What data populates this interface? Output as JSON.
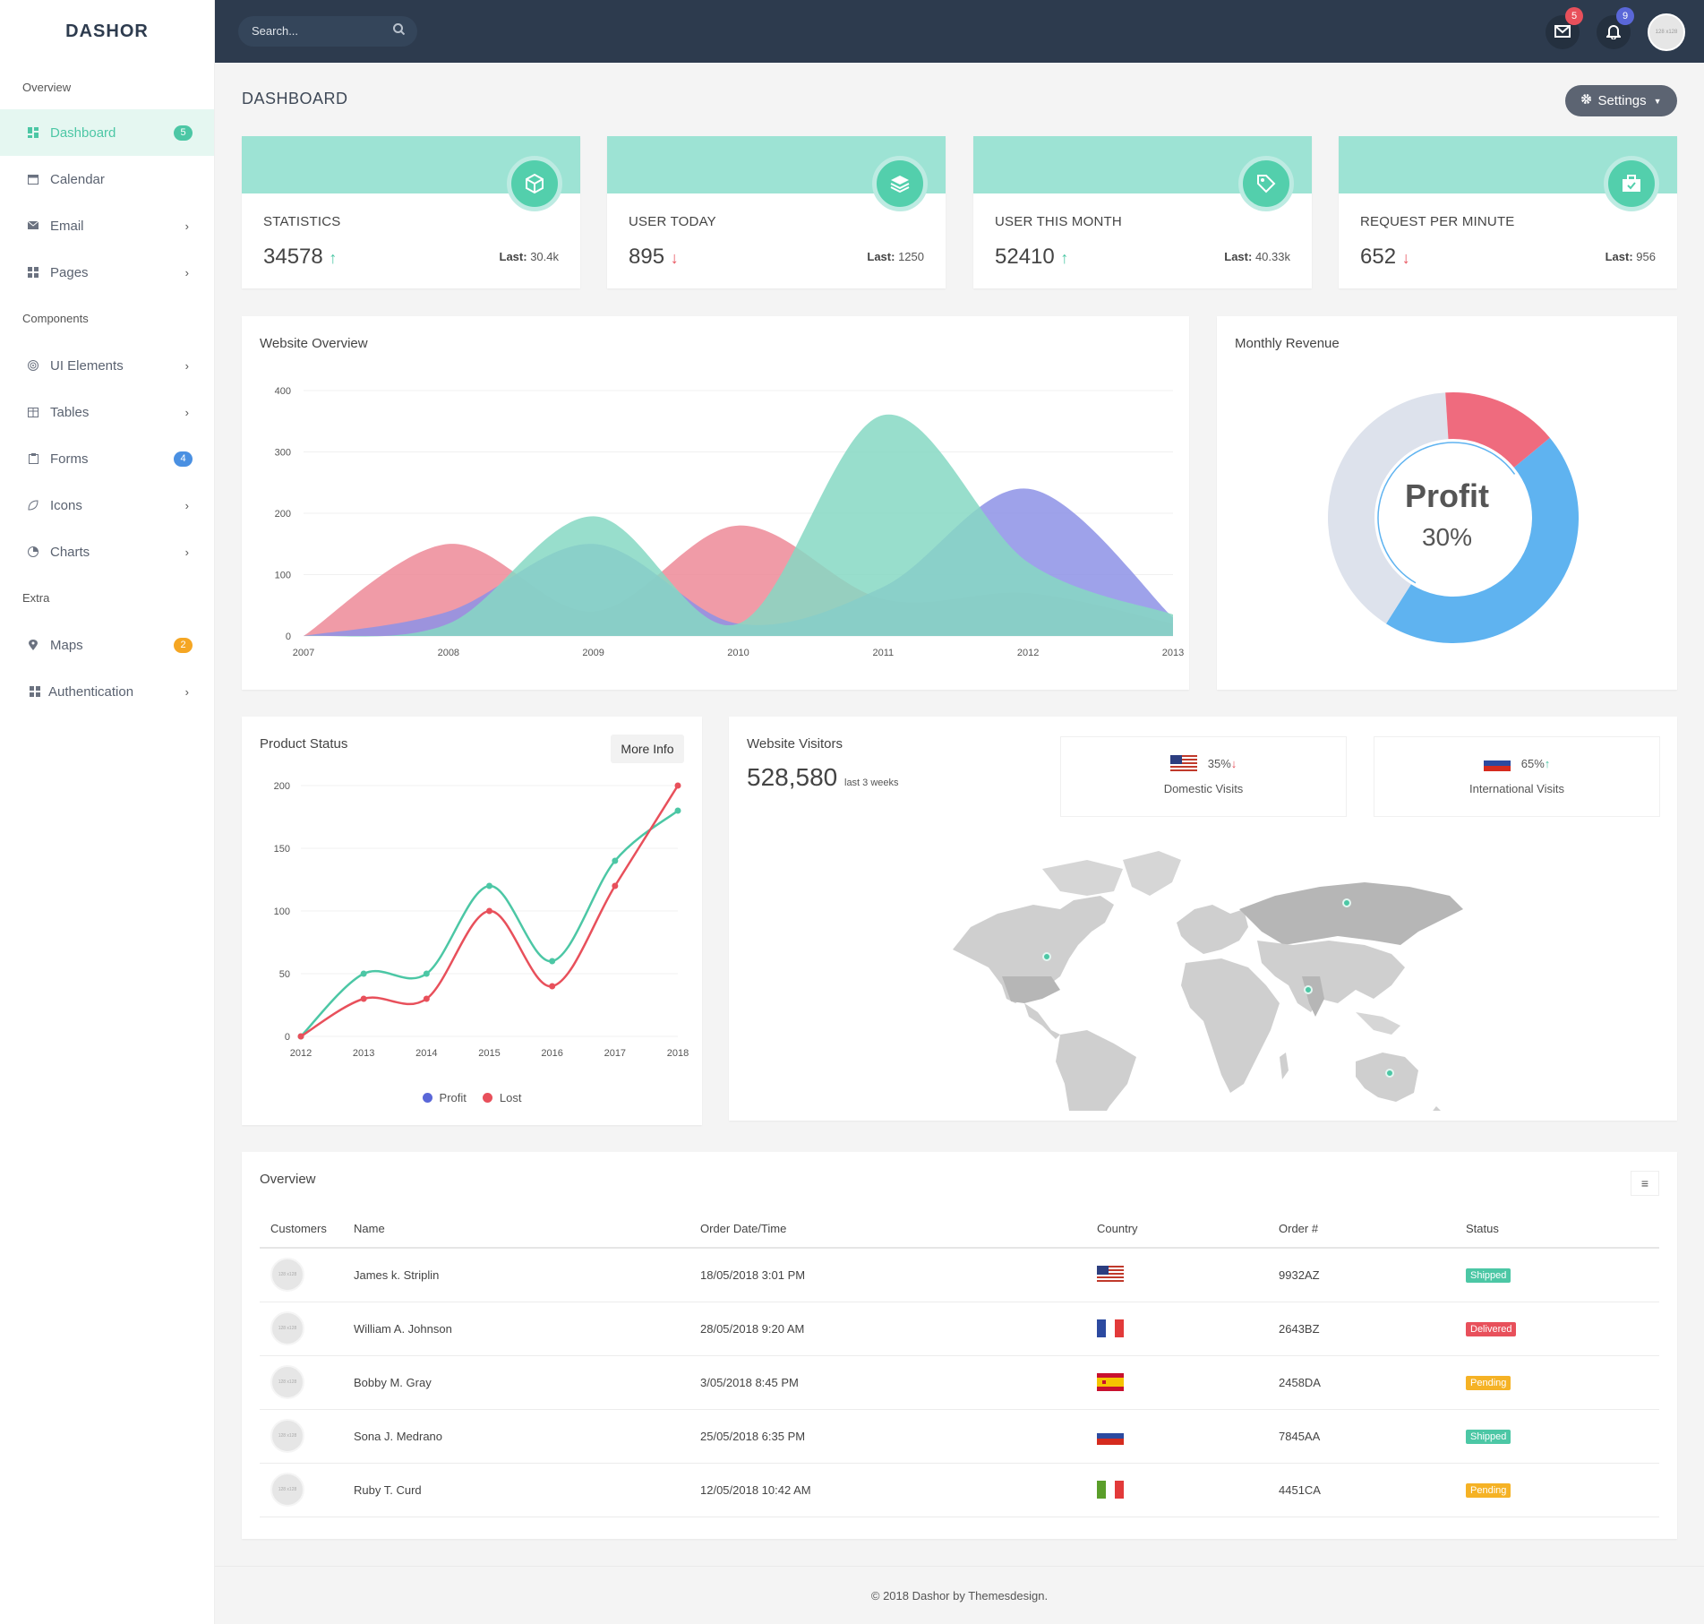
{
  "brand": "DASHOR",
  "sidebar": {
    "sections": [
      "Overview",
      "Components",
      "Extra"
    ],
    "items": [
      {
        "label": "Dashboard",
        "icon": "dashboard-icon",
        "badge": "5",
        "badge_color": "#4cc7a5",
        "active": true
      },
      {
        "label": "Calendar",
        "icon": "calendar-icon"
      },
      {
        "label": "Email",
        "icon": "envelope-icon",
        "chevron": true
      },
      {
        "label": "Pages",
        "icon": "pages-icon",
        "chevron": true
      },
      {
        "label": "UI Elements",
        "icon": "target-icon",
        "chevron": true
      },
      {
        "label": "Tables",
        "icon": "table-icon",
        "chevron": true
      },
      {
        "label": "Forms",
        "icon": "clipboard-icon",
        "badge": "4",
        "badge_color": "#4a90e2"
      },
      {
        "label": "Icons",
        "icon": "leaf-icon",
        "chevron": true
      },
      {
        "label": "Charts",
        "icon": "pie-chart-icon",
        "chevron": true
      },
      {
        "label": "Maps",
        "icon": "map-marker-icon",
        "badge": "2",
        "badge_color": "#f5a623"
      },
      {
        "label": "Authentication",
        "icon": "lock-icon",
        "chevron": true
      }
    ]
  },
  "topbar": {
    "search_placeholder": "Search...",
    "mail_badge": "5",
    "notif_badge": "9",
    "avatar_text": "128 x128"
  },
  "page_title": "DASHBOARD",
  "settings_label": "Settings",
  "stats": [
    {
      "label": "STATISTICS",
      "value": "34578",
      "trend": "up",
      "last_label": "Last:",
      "last_value": "30.4k",
      "icon": "cube-icon"
    },
    {
      "label": "USER TODAY",
      "value": "895",
      "trend": "down",
      "last_label": "Last:",
      "last_value": "1250",
      "icon": "layers-icon"
    },
    {
      "label": "USER THIS MONTH",
      "value": "52410",
      "trend": "up",
      "last_label": "Last:",
      "last_value": "40.33k",
      "icon": "tag-icon"
    },
    {
      "label": "REQUEST PER MINUTE",
      "value": "652",
      "trend": "down",
      "last_label": "Last:",
      "last_value": "956",
      "icon": "briefcase-icon"
    }
  ],
  "website_overview": {
    "title": "Website Overview"
  },
  "monthly_revenue": {
    "title": "Monthly Revenue",
    "center_label": "Profit",
    "center_value": "30%"
  },
  "product_status": {
    "title": "Product Status",
    "more_label": "More Info",
    "legend": [
      "Profit",
      "Lost"
    ]
  },
  "website_visitors": {
    "title": "Website Visitors",
    "total": "528,580",
    "period": "last 3 weeks",
    "domestic": {
      "pct": "35%",
      "label": "Domestic Visits",
      "trend": "down"
    },
    "international": {
      "pct": "65%",
      "label": "International Visits",
      "trend": "up"
    }
  },
  "overview_table": {
    "title": "Overview",
    "columns": [
      "Customers",
      "Name",
      "Order Date/Time",
      "Country",
      "Order #",
      "Status"
    ],
    "rows": [
      {
        "avatar": "128 x128",
        "name": "James k. Striplin",
        "date": "18/05/2018 3:01 PM",
        "country": "us",
        "order": "9932AZ",
        "status": "Shipped",
        "status_color": "#4cc7a5"
      },
      {
        "avatar": "128 x128",
        "name": "William A. Johnson",
        "date": "28/05/2018 9:20 AM",
        "country": "fr",
        "order": "2643BZ",
        "status": "Delivered",
        "status_color": "#e8505b"
      },
      {
        "avatar": "128 x128",
        "name": "Bobby M. Gray",
        "date": "3/05/2018 8:45 PM",
        "country": "es",
        "order": "2458DA",
        "status": "Pending",
        "status_color": "#f5b225"
      },
      {
        "avatar": "128 x128",
        "name": "Sona J. Medrano",
        "date": "25/05/2018 6:35 PM",
        "country": "ru",
        "order": "7845AA",
        "status": "Shipped",
        "status_color": "#4cc7a5"
      },
      {
        "avatar": "128 x128",
        "name": "Ruby T. Curd",
        "date": "12/05/2018 10:42 AM",
        "country": "it",
        "order": "4451CA",
        "status": "Pending",
        "status_color": "#f5b225"
      }
    ]
  },
  "footer": "© 2018 Dashor by Themesdesign.",
  "colors": {
    "accent": "#4cc7a5",
    "topbar": "#2d3b4e",
    "pink": "#ed8a98",
    "purple": "#8d92e6",
    "blue": "#5fb3f0",
    "red": "#ef6b7e",
    "grey": "#dde2ec"
  },
  "chart_data": [
    {
      "type": "area",
      "title": "Website Overview",
      "x": [
        "2007",
        "2008",
        "2009",
        "2010",
        "2011",
        "2012",
        "2013"
      ],
      "ylim": [
        0,
        400
      ],
      "yticks": [
        0,
        100,
        200,
        300,
        400
      ],
      "series": [
        {
          "color": "#ed8a98",
          "values": [
            0,
            150,
            40,
            180,
            60,
            70,
            20
          ]
        },
        {
          "color": "#8d92e6",
          "values": [
            0,
            40,
            150,
            20,
            80,
            240,
            30
          ]
        },
        {
          "color": "#86d8c3",
          "values": [
            0,
            20,
            195,
            20,
            360,
            120,
            35
          ]
        }
      ]
    },
    {
      "type": "pie",
      "title": "Monthly Revenue",
      "slices": [
        {
          "color": "#5fb3f0",
          "value": 45
        },
        {
          "color": "#dde2ec",
          "value": 40
        },
        {
          "color": "#ef6b7e",
          "value": 15
        }
      ]
    },
    {
      "type": "line",
      "title": "Product Status",
      "x": [
        "2012",
        "2013",
        "2014",
        "2015",
        "2016",
        "2017",
        "2018"
      ],
      "ylim": [
        0,
        200
      ],
      "yticks": [
        0,
        50,
        100,
        150,
        200
      ],
      "series": [
        {
          "name": "Profit",
          "color": "#4cc7a5",
          "values": [
            0,
            50,
            50,
            120,
            60,
            140,
            180
          ]
        },
        {
          "name": "Lost",
          "color": "#e8505b",
          "values": [
            0,
            30,
            30,
            100,
            40,
            120,
            200
          ]
        }
      ]
    }
  ]
}
